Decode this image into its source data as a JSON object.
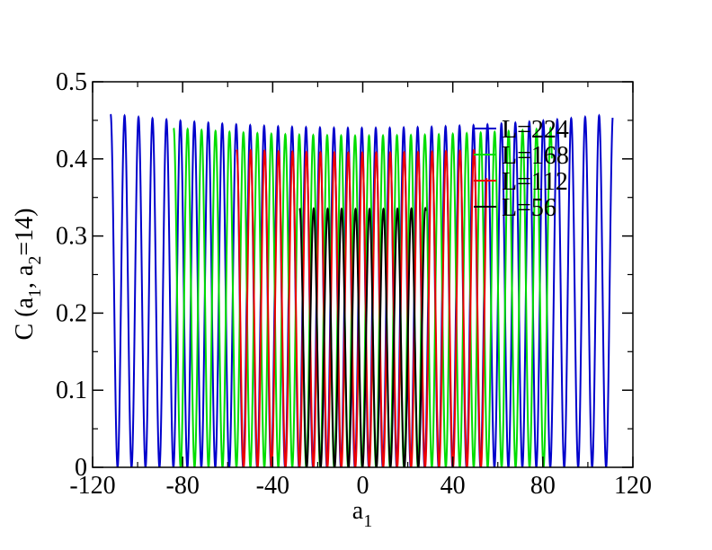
{
  "chart_data": {
    "type": "line",
    "title": "",
    "xlabel": "a",
    "xlabel_sub": "1",
    "ylabel": {
      "parts": [
        "C (a",
        "1",
        ", a",
        "2",
        "=14)"
      ]
    },
    "xlim": [
      -120,
      120
    ],
    "ylim": [
      0,
      0.5
    ],
    "x_ticks": [
      -120,
      -80,
      -40,
      0,
      40,
      80,
      120
    ],
    "x_tick_labels": [
      "-120",
      "-80",
      "-40",
      "0",
      "40",
      "80",
      "120"
    ],
    "y_ticks": [
      0,
      0.1,
      0.2,
      0.3,
      0.4,
      0.5
    ],
    "y_tick_labels": [
      "0",
      "0.1",
      "0.2",
      "0.3",
      "0.4",
      "0.5"
    ],
    "grid": false,
    "legend_position": "top-right",
    "oscillation_period": 6.2,
    "series": [
      {
        "name": "L=224",
        "color": "#0000cc",
        "x_range": [
          -112,
          111
        ],
        "peak": 0.458,
        "peak_center": 0.44
      },
      {
        "name": "L=168",
        "color": "#00dd00",
        "x_range": [
          -84,
          84
        ],
        "peak": 0.44,
        "peak_center": 0.43
      },
      {
        "name": "L=112",
        "color": "#ee0000",
        "x_range": [
          -56,
          55
        ],
        "peak": 0.412,
        "peak_center": 0.408
      },
      {
        "name": "L=56",
        "color": "#000000",
        "x_range": [
          -28,
          28
        ],
        "peak": 0.336,
        "peak_center": 0.335
      }
    ]
  }
}
